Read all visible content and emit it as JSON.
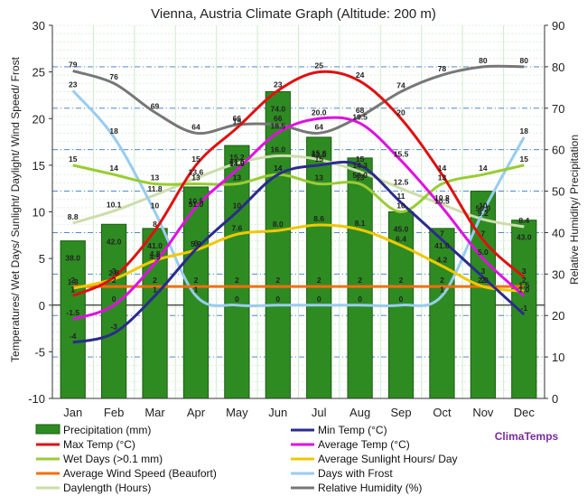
{
  "chart_data": {
    "type": "bar",
    "title": "Vienna, Austria Climate Graph (Altitude: 200 m)",
    "ylabel": "Temperatures/ Wet Days/ Sunlight/ Daylight/ Wind Speed/ Frost",
    "y2label": "Relative Humidity/ Precipitation",
    "ylim": [
      -10,
      30
    ],
    "y2lim": [
      0,
      90
    ],
    "yticks": [
      "-10",
      "-5",
      "0",
      "5",
      "10",
      "15",
      "20",
      "25",
      "30"
    ],
    "y2ticks": [
      "0",
      "10",
      "20",
      "30",
      "40",
      "50",
      "60",
      "70",
      "80",
      "90"
    ],
    "categories": [
      "Jan",
      "Feb",
      "Mar",
      "Apr",
      "May",
      "Jun",
      "Jul",
      "Aug",
      "Sep",
      "Oct",
      "Nov",
      "Dec"
    ],
    "grid": true,
    "legend_position": "bottom",
    "brand": "ClimaTemps",
    "series": [
      {
        "name": "Precipitation (mm)",
        "type": "bar",
        "axis": "right",
        "color": "#2e8b22",
        "values": [
          38,
          42,
          41,
          51,
          61,
          74,
          63,
          58,
          45,
          41,
          50,
          43
        ],
        "labels": [
          "38.0",
          "42.0",
          "41.0",
          "51.0",
          "61.0",
          "74.0",
          "63.0",
          "58.0",
          "45.0",
          "41.0",
          "50.0",
          "43.0"
        ]
      },
      {
        "name": "Min Temp (°C)",
        "type": "line",
        "axis": "left",
        "color": "#2b2b8c",
        "values": [
          -4,
          -3,
          1,
          6,
          10,
          14,
          15,
          15,
          11,
          7,
          3,
          -1
        ],
        "labels": [
          "-4",
          "-3",
          "1",
          "6",
          "10",
          "14",
          "15",
          "15",
          "11",
          "7",
          "3",
          "-1"
        ]
      },
      {
        "name": "Max Temp (°C)",
        "type": "line",
        "axis": "left",
        "color": "#e01010",
        "values": [
          1,
          3,
          8,
          15,
          19,
          23,
          25,
          24,
          20,
          14,
          7,
          3
        ],
        "labels": [
          "1",
          "3",
          "8",
          "15",
          "19",
          "23",
          "25",
          "24",
          "20",
          "14",
          "7",
          "3"
        ]
      },
      {
        "name": "Average Temp (°C)",
        "type": "line",
        "axis": "left",
        "color": "#e010e0",
        "values": [
          -1.5,
          0,
          4.5,
          10.5,
          14.5,
          18.5,
          20,
          19.5,
          15.5,
          10.5,
          5,
          1
        ],
        "labels": [
          "-1.5",
          "0",
          "4.5",
          "10.5",
          "14.5",
          "18.5",
          "20.0",
          "19.5",
          "15.5",
          "10.5",
          "5.0",
          "1.0"
        ]
      },
      {
        "name": "Wet Days (>0.1 mm)",
        "type": "line",
        "axis": "left",
        "color": "#99cc33",
        "values": [
          15,
          14,
          13,
          13,
          13,
          14,
          13,
          13,
          10,
          13,
          14,
          15
        ],
        "labels": [
          "15",
          "14",
          "13",
          "13",
          "13",
          "14",
          "13",
          "13",
          "10",
          "13",
          "14",
          "15"
        ]
      },
      {
        "name": "Average Sunlight Hours/ Day",
        "type": "line",
        "axis": "left",
        "color": "#f0c800",
        "values": [
          1.8,
          2.8,
          4.8,
          5.9,
          7.6,
          8,
          8.6,
          8.1,
          6.4,
          4.2,
          2,
          1.5
        ],
        "labels": [
          "1.8",
          "2.8",
          "4.8",
          "5.9",
          "7.6",
          "8.0",
          "8.6",
          "8.1",
          "6.4",
          "4.2",
          "2.0",
          "1.5"
        ]
      },
      {
        "name": "Average Wind Speed (Beaufort)",
        "type": "line",
        "axis": "left",
        "color": "#f07010",
        "values": [
          2,
          2,
          2,
          2,
          2,
          2,
          2,
          2,
          2,
          2,
          2,
          2
        ],
        "labels": [
          "2",
          "2",
          "2",
          "2",
          "2",
          "2",
          "2",
          "2",
          "2",
          "2",
          "2",
          "2"
        ]
      },
      {
        "name": "Days with Frost",
        "type": "line",
        "axis": "left",
        "color": "#99ccf0",
        "values": [
          23,
          18,
          10,
          1,
          0,
          0,
          0,
          0,
          0,
          1,
          10,
          18
        ],
        "labels": [
          "23",
          "18",
          "10",
          "1",
          "0",
          "0",
          "0",
          "0",
          "0",
          "1",
          "10",
          "18"
        ]
      },
      {
        "name": "Daylength (Hours)",
        "type": "line",
        "axis": "left",
        "color": "#ccddaa",
        "values": [
          8.8,
          10.1,
          11.8,
          13.6,
          15.2,
          16,
          15.6,
          14.3,
          12.5,
          10.8,
          9.2,
          8.4
        ],
        "labels": [
          "8.8",
          "10.1",
          "11.8",
          "13.6",
          "15.2",
          "16.0",
          "15.6",
          "14.3",
          "12.5",
          "10.8",
          "9.2",
          "8.4"
        ]
      },
      {
        "name": "Relative Humidity (%)",
        "type": "line",
        "axis": "right",
        "color": "#777777",
        "values": [
          79,
          76,
          69,
          64,
          66,
          66,
          64,
          68,
          74,
          78,
          80,
          80
        ],
        "labels": [
          "79",
          "76",
          "69",
          "64",
          "66",
          "66",
          "64",
          "68",
          "74",
          "78",
          "80",
          "80"
        ]
      }
    ]
  }
}
